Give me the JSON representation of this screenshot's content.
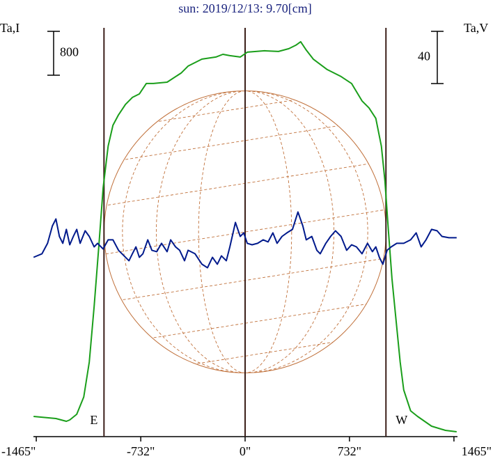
{
  "chart_data": {
    "type": "line",
    "title": "sun: 2019/12/13: 9.70[cm]",
    "y_label": "Ta,I",
    "y2_label": "Ta,V",
    "scale_bar_y": 800,
    "scale_bar_y2": 40,
    "vlines": [
      -990,
      0,
      988
    ],
    "limb_labels": [
      "E",
      "W"
    ],
    "xlim": [
      -1485,
      1485
    ],
    "ylim": [
      -343,
      7111
    ],
    "y2lim": [
      -140,
      173
    ],
    "xticks": [
      {
        "value": -1465,
        "label": "-1465\""
      },
      {
        "value": -732,
        "label": "-732\""
      },
      {
        "value": 0,
        "label": "0\""
      },
      {
        "value": 732,
        "label": "732\""
      },
      {
        "value": 1465,
        "label": "1465\""
      }
    ],
    "series": [
      {
        "name": "Ta,I",
        "color": "#1a9e1a",
        "x": [
          -1484,
          -1327,
          -1254,
          -1230,
          -1181,
          -1132,
          -1093,
          -1059,
          -1025,
          -996,
          -961,
          -927,
          -888,
          -839,
          -791,
          -742,
          -693,
          -644,
          -547,
          -449,
          -400,
          -303,
          -205,
          -156,
          -107,
          -34,
          15,
          137,
          234,
          307,
          356,
          390,
          429,
          478,
          576,
          673,
          747,
          820,
          869,
          917,
          956,
          981,
          1005,
          1030,
          1054,
          1088,
          1113,
          1161,
          1210,
          1308,
          1405,
          1484
        ],
        "values": [
          25,
          -13,
          -64,
          -38,
          64,
          381,
          1016,
          2032,
          3175,
          4191,
          4953,
          5334,
          5525,
          5715,
          5842,
          5906,
          6096,
          6096,
          6121,
          6287,
          6414,
          6541,
          6579,
          6629,
          6604,
          6579,
          6668,
          6693,
          6680,
          6731,
          6795,
          6858,
          6706,
          6541,
          6350,
          6223,
          6096,
          5779,
          5652,
          5461,
          4953,
          4318,
          3429,
          2540,
          1905,
          1016,
          508,
          127,
          25,
          -152,
          -229,
          -254
        ]
      },
      {
        "name": "Ta,V",
        "color": "#001a8c",
        "axis": "y2",
        "x": [
          -1484,
          -1425,
          -1386,
          -1352,
          -1327,
          -1303,
          -1279,
          -1254,
          -1230,
          -1205,
          -1181,
          -1157,
          -1122,
          -1093,
          -1059,
          -1035,
          -996,
          -961,
          -927,
          -888,
          -849,
          -815,
          -791,
          -766,
          -742,
          -717,
          -683,
          -654,
          -620,
          -586,
          -547,
          -522,
          -488,
          -459,
          -425,
          -400,
          -351,
          -303,
          -264,
          -229,
          -195,
          -166,
          -132,
          -107,
          -68,
          -34,
          -10,
          15,
          49,
          88,
          127,
          161,
          195,
          224,
          259,
          293,
          332,
          371,
          405,
          429,
          468,
          503,
          527,
          566,
          600,
          634,
          673,
          712,
          747,
          781,
          820,
          859,
          893,
          917,
          942,
          966,
          996,
          1025,
          1064,
          1113,
          1161,
          1200,
          1235,
          1269,
          1308,
          1347,
          1381,
          1430,
          1484
        ],
        "values": [
          -2.7,
          0,
          8,
          21.3,
          26.7,
          13.3,
          8,
          18.7,
          6.9,
          13.3,
          18.7,
          8,
          17.6,
          13.3,
          5.3,
          8,
          3.7,
          10.7,
          10.7,
          2.7,
          -1.6,
          -5.3,
          0,
          5.3,
          -2.7,
          0,
          10.7,
          2.7,
          1.6,
          8,
          1.6,
          10.7,
          5.3,
          2.7,
          -5.3,
          2.7,
          0,
          -8,
          -10.7,
          -2.7,
          -8,
          -1.6,
          -5.3,
          5.3,
          24,
          13.3,
          16,
          8,
          6.9,
          8,
          10.7,
          9.1,
          16,
          8,
          13.3,
          16,
          18.7,
          32,
          21.3,
          10.7,
          13.3,
          2.7,
          0,
          8,
          13.3,
          17.6,
          13.3,
          2.7,
          6.9,
          5.3,
          0,
          8,
          1.6,
          5.3,
          -2.7,
          -8,
          2.7,
          5.3,
          8,
          8,
          10.7,
          16,
          5.3,
          10.7,
          18.7,
          17.6,
          13.3,
          12.3,
          12.3
        ]
      }
    ]
  }
}
